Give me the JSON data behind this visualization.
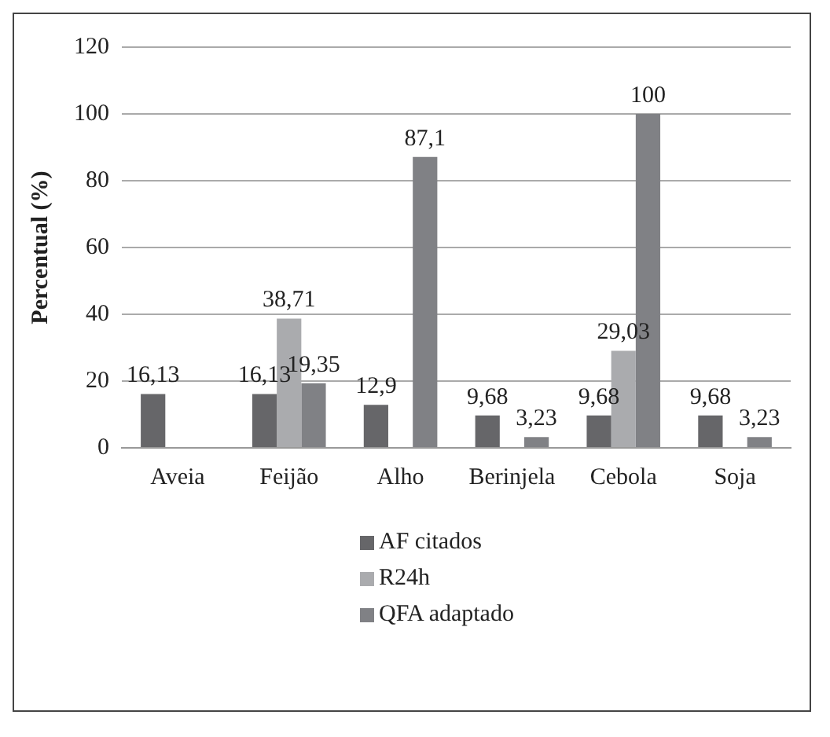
{
  "chart_data": {
    "type": "bar",
    "ylabel": "Percentual (%)",
    "categories": [
      "Aveia",
      "Feijão",
      "Alho",
      "Berinjela",
      "Cebola",
      "Soja"
    ],
    "series": [
      {
        "name": "AF citados",
        "color": "#666669",
        "values": [
          16.13,
          16.13,
          12.9,
          9.68,
          9.68,
          9.68
        ],
        "value_labels": [
          "16,13",
          "16,13",
          "12,9",
          "9,68",
          "9,68",
          "9,68"
        ]
      },
      {
        "name": "R24h",
        "color": "#aaabae",
        "values": [
          null,
          38.71,
          null,
          null,
          29.03,
          null
        ],
        "value_labels": [
          null,
          "38,71",
          null,
          null,
          "29,03",
          null
        ]
      },
      {
        "name": "QFA adaptado",
        "color": "#808185",
        "values": [
          null,
          19.35,
          87.1,
          3.23,
          100,
          3.23
        ],
        "value_labels": [
          null,
          "19,35",
          "87,1",
          "3,23",
          "100",
          "3,23"
        ]
      }
    ],
    "ylim": [
      0,
      120
    ],
    "yticks": [
      0,
      20,
      40,
      60,
      80,
      100,
      120
    ],
    "grid": "y",
    "legend": "bottom"
  }
}
